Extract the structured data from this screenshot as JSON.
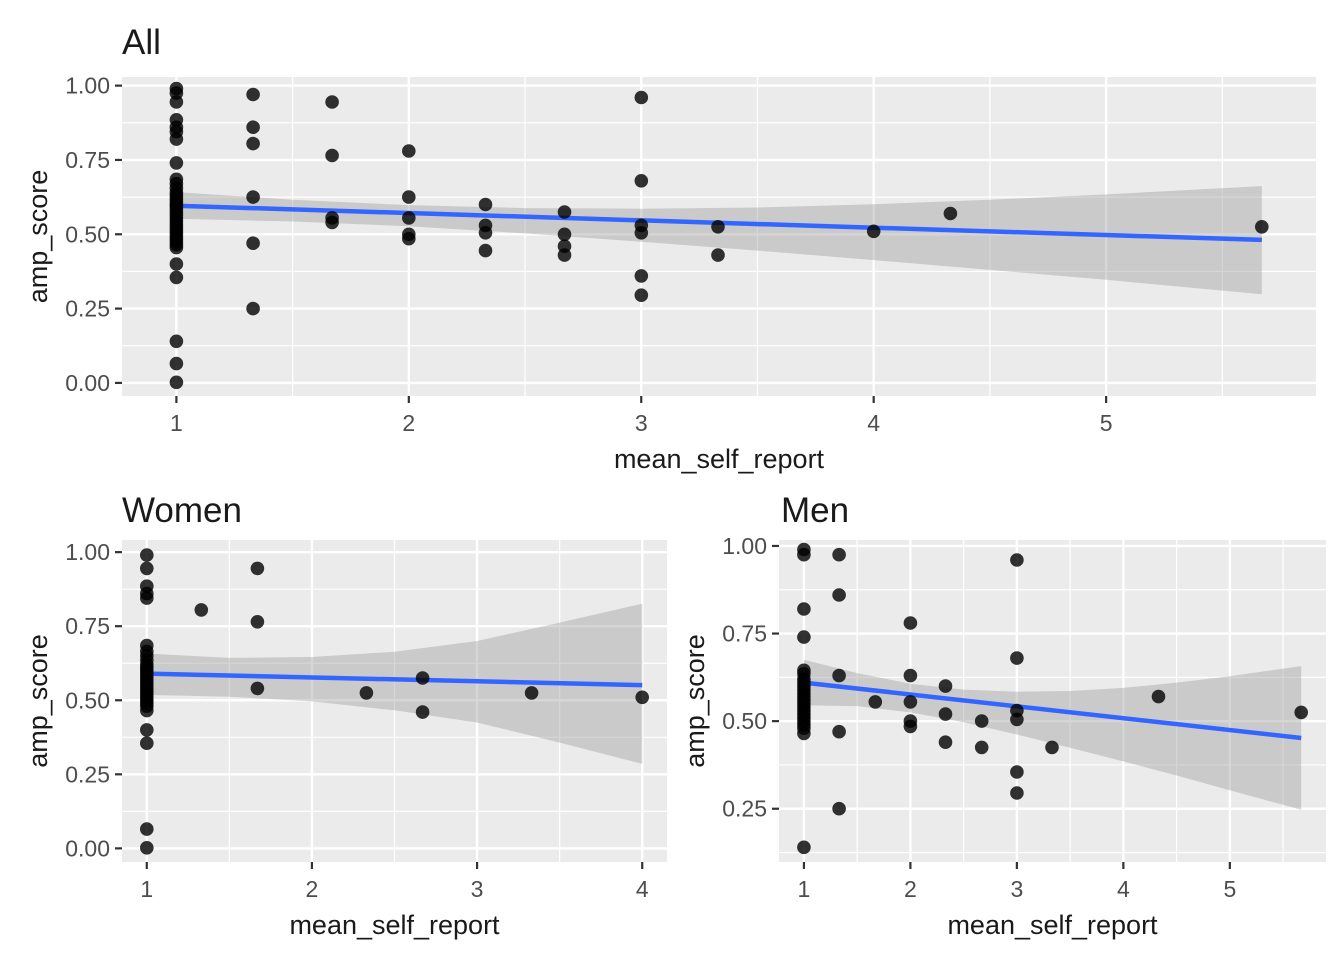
{
  "figure": {
    "x_axis_label": "mean_self_report",
    "y_axis_label": "amp_score",
    "colors": {
      "panel_background": "#EBEBEB",
      "gridline": "#FFFFFF",
      "point": "#000000",
      "point_opacity": 0.8,
      "smooth_line": "#3366FF",
      "ci_band": "#999999",
      "ci_band_opacity": 0.4,
      "axis_text": "#4D4D4D",
      "title_text": "#1A1A1A",
      "tick_mark": "#333333"
    }
  },
  "chart_data": [
    {
      "type": "scatter",
      "title": "All",
      "xlabel": "mean_self_report",
      "ylabel": "amp_score",
      "x_ticks": [
        1,
        2,
        3,
        4,
        5
      ],
      "y_ticks": [
        0,
        0.25,
        0.5,
        0.75,
        1
      ],
      "xlim": [
        0.766,
        5.903
      ],
      "ylim": [
        -0.044,
        1.029
      ],
      "grid": true,
      "legend": "none",
      "points": [
        [
          1,
          0.99
        ],
        [
          1,
          0.975
        ],
        [
          1,
          0.945
        ],
        [
          1,
          0.885
        ],
        [
          1,
          0.86
        ],
        [
          1,
          0.845
        ],
        [
          1,
          0.82
        ],
        [
          1,
          0.74
        ],
        [
          1,
          0.685
        ],
        [
          1,
          0.67
        ],
        [
          1,
          0.655
        ],
        [
          1,
          0.64
        ],
        [
          1,
          0.63
        ],
        [
          1,
          0.62
        ],
        [
          1,
          0.61
        ],
        [
          1,
          0.6
        ],
        [
          1,
          0.595
        ],
        [
          1,
          0.585
        ],
        [
          1,
          0.575
        ],
        [
          1,
          0.565
        ],
        [
          1,
          0.555
        ],
        [
          1,
          0.545
        ],
        [
          1,
          0.535
        ],
        [
          1,
          0.525
        ],
        [
          1,
          0.515
        ],
        [
          1,
          0.505
        ],
        [
          1,
          0.495
        ],
        [
          1,
          0.485
        ],
        [
          1,
          0.475
        ],
        [
          1,
          0.465
        ],
        [
          1,
          0.455
        ],
        [
          1,
          0.4
        ],
        [
          1,
          0.355
        ],
        [
          1,
          0.14
        ],
        [
          1,
          0.065
        ],
        [
          1,
          0.002
        ],
        [
          1.33,
          0.97
        ],
        [
          1.33,
          0.86
        ],
        [
          1.33,
          0.805
        ],
        [
          1.33,
          0.625
        ],
        [
          1.33,
          0.47
        ],
        [
          1.33,
          0.25
        ],
        [
          1.67,
          0.945
        ],
        [
          1.67,
          0.765
        ],
        [
          1.67,
          0.555
        ],
        [
          1.67,
          0.54
        ],
        [
          2,
          0.78
        ],
        [
          2,
          0.625
        ],
        [
          2,
          0.555
        ],
        [
          2,
          0.5
        ],
        [
          2,
          0.485
        ],
        [
          2.33,
          0.6
        ],
        [
          2.33,
          0.53
        ],
        [
          2.33,
          0.505
        ],
        [
          2.33,
          0.445
        ],
        [
          2.67,
          0.575
        ],
        [
          2.67,
          0.5
        ],
        [
          2.67,
          0.46
        ],
        [
          2.67,
          0.43
        ],
        [
          3,
          0.96
        ],
        [
          3,
          0.68
        ],
        [
          3,
          0.53
        ],
        [
          3,
          0.505
        ],
        [
          3,
          0.36
        ],
        [
          3,
          0.295
        ],
        [
          3.33,
          0.525
        ],
        [
          3.33,
          0.43
        ],
        [
          4,
          0.51
        ],
        [
          4.33,
          0.57
        ],
        [
          5.67,
          0.525
        ]
      ],
      "regression_line": {
        "x": [
          1,
          5.67
        ],
        "y": [
          0.596,
          0.481
        ]
      },
      "ci_band": {
        "x": [
          1,
          1.5,
          2,
          2.5,
          3,
          3.5,
          4,
          4.5,
          5,
          5.67
        ],
        "upper": [
          0.642,
          0.616,
          0.598,
          0.588,
          0.586,
          0.59,
          0.601,
          0.616,
          0.634,
          0.662
        ],
        "lower": [
          0.552,
          0.543,
          0.527,
          0.503,
          0.475,
          0.445,
          0.413,
          0.38,
          0.347,
          0.298
        ]
      }
    },
    {
      "type": "scatter",
      "title": "Women",
      "xlabel": "mean_self_report",
      "ylabel": "amp_score",
      "x_ticks": [
        1,
        2,
        3,
        4
      ],
      "y_ticks": [
        0,
        0.25,
        0.5,
        0.75,
        1
      ],
      "xlim": [
        0.85,
        4.15
      ],
      "ylim": [
        -0.046,
        1.041
      ],
      "grid": true,
      "legend": "none",
      "points": [
        [
          1,
          0.99
        ],
        [
          1,
          0.945
        ],
        [
          1,
          0.885
        ],
        [
          1,
          0.86
        ],
        [
          1,
          0.845
        ],
        [
          1,
          0.685
        ],
        [
          1,
          0.665
        ],
        [
          1,
          0.65
        ],
        [
          1,
          0.635
        ],
        [
          1,
          0.62
        ],
        [
          1,
          0.61
        ],
        [
          1,
          0.6
        ],
        [
          1,
          0.59
        ],
        [
          1,
          0.58
        ],
        [
          1,
          0.57
        ],
        [
          1,
          0.56
        ],
        [
          1,
          0.55
        ],
        [
          1,
          0.54
        ],
        [
          1,
          0.53
        ],
        [
          1,
          0.52
        ],
        [
          1,
          0.51
        ],
        [
          1,
          0.5
        ],
        [
          1,
          0.49
        ],
        [
          1,
          0.48
        ],
        [
          1,
          0.465
        ],
        [
          1,
          0.4
        ],
        [
          1,
          0.355
        ],
        [
          1,
          0.065
        ],
        [
          1,
          0.002
        ],
        [
          1.33,
          0.805
        ],
        [
          1.67,
          0.945
        ],
        [
          1.67,
          0.765
        ],
        [
          1.67,
          0.54
        ],
        [
          2.33,
          0.525
        ],
        [
          2.67,
          0.575
        ],
        [
          2.67,
          0.46
        ],
        [
          3.33,
          0.525
        ],
        [
          4,
          0.51
        ]
      ],
      "regression_line": {
        "x": [
          1,
          4
        ],
        "y": [
          0.59,
          0.551
        ]
      },
      "ci_band": {
        "x": [
          1,
          1.5,
          2,
          2.5,
          3,
          3.5,
          4
        ],
        "upper": [
          0.658,
          0.643,
          0.646,
          0.664,
          0.7,
          0.762,
          0.826
        ],
        "lower": [
          0.518,
          0.512,
          0.496,
          0.466,
          0.425,
          0.357,
          0.285
        ]
      }
    },
    {
      "type": "scatter",
      "title": "Men",
      "xlabel": "mean_self_report",
      "ylabel": "amp_score",
      "x_ticks": [
        1,
        2,
        3,
        4,
        5
      ],
      "y_ticks": [
        0.25,
        0.5,
        0.75,
        1
      ],
      "xlim": [
        0.766,
        5.903
      ],
      "ylim": [
        0.098,
        1.017
      ],
      "grid": true,
      "legend": "none",
      "points": [
        [
          1,
          0.99
        ],
        [
          1,
          0.975
        ],
        [
          1,
          0.82
        ],
        [
          1,
          0.74
        ],
        [
          1,
          0.645
        ],
        [
          1,
          0.635
        ],
        [
          1,
          0.62
        ],
        [
          1,
          0.61
        ],
        [
          1,
          0.6
        ],
        [
          1,
          0.59
        ],
        [
          1,
          0.58
        ],
        [
          1,
          0.57
        ],
        [
          1,
          0.56
        ],
        [
          1,
          0.55
        ],
        [
          1,
          0.54
        ],
        [
          1,
          0.53
        ],
        [
          1,
          0.52
        ],
        [
          1,
          0.51
        ],
        [
          1,
          0.5
        ],
        [
          1,
          0.49
        ],
        [
          1,
          0.48
        ],
        [
          1,
          0.465
        ],
        [
          1,
          0.14
        ],
        [
          1.33,
          0.975
        ],
        [
          1.33,
          0.86
        ],
        [
          1.33,
          0.63
        ],
        [
          1.33,
          0.47
        ],
        [
          1.33,
          0.25
        ],
        [
          1.67,
          0.555
        ],
        [
          2,
          0.78
        ],
        [
          2,
          0.63
        ],
        [
          2,
          0.555
        ],
        [
          2,
          0.5
        ],
        [
          2,
          0.485
        ],
        [
          2.33,
          0.6
        ],
        [
          2.33,
          0.52
        ],
        [
          2.33,
          0.44
        ],
        [
          2.67,
          0.5
        ],
        [
          2.67,
          0.425
        ],
        [
          3,
          0.96
        ],
        [
          3,
          0.68
        ],
        [
          3,
          0.53
        ],
        [
          3,
          0.505
        ],
        [
          3,
          0.355
        ],
        [
          3,
          0.295
        ],
        [
          3.33,
          0.425
        ],
        [
          4.33,
          0.57
        ],
        [
          5.67,
          0.525
        ]
      ],
      "regression_line": {
        "x": [
          1,
          5.67
        ],
        "y": [
          0.61,
          0.452
        ]
      },
      "ci_band": {
        "x": [
          1,
          1.5,
          2,
          2.5,
          3,
          3.5,
          4,
          4.5,
          5,
          5.67
        ],
        "upper": [
          0.675,
          0.637,
          0.607,
          0.59,
          0.584,
          0.586,
          0.595,
          0.61,
          0.628,
          0.657
        ],
        "lower": [
          0.545,
          0.543,
          0.525,
          0.497,
          0.462,
          0.424,
          0.385,
          0.345,
          0.303,
          0.247
        ]
      }
    }
  ]
}
